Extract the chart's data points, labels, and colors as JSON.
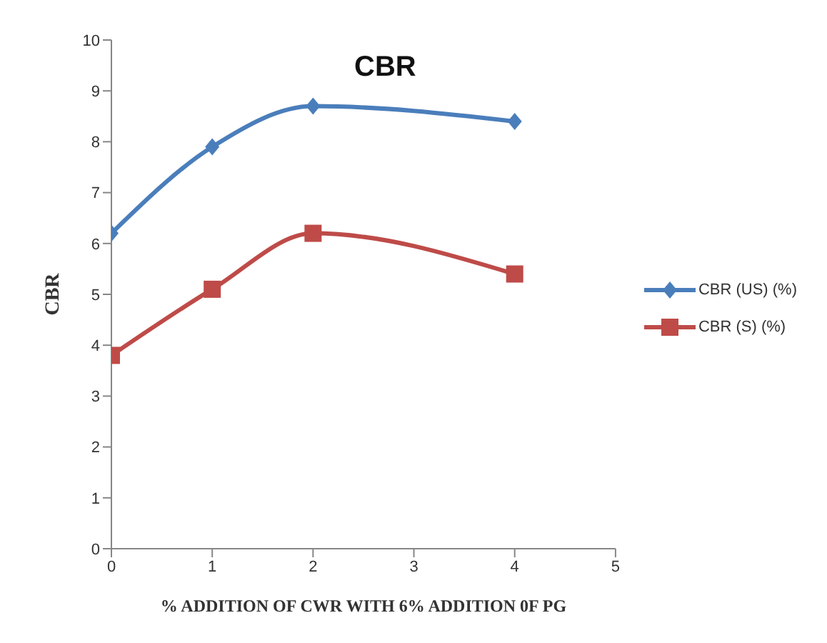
{
  "chart_data": {
    "type": "line",
    "title": "CBR",
    "xlabel": "% ADDITION  OF CWR WITH 6% ADDITION  0F PG",
    "ylabel": "CBR",
    "x": [
      0,
      1,
      2,
      4
    ],
    "series": [
      {
        "name": "CBR (US) (%)",
        "color": "#4a7ebb",
        "marker": "diamond",
        "values": [
          6.2,
          7.9,
          8.7,
          8.4
        ]
      },
      {
        "name": "CBR (S) (%)",
        "color": "#be4b48",
        "marker": "square",
        "values": [
          3.8,
          5.1,
          6.2,
          5.4
        ]
      }
    ],
    "xlim": [
      0,
      5
    ],
    "xticks": [
      0,
      1,
      2,
      3,
      4,
      5
    ],
    "ylim": [
      0,
      10
    ],
    "yticks": [
      0,
      1,
      2,
      3,
      4,
      5,
      6,
      7,
      8,
      9,
      10
    ],
    "grid": false,
    "legend": "right",
    "line_style": "solid"
  }
}
